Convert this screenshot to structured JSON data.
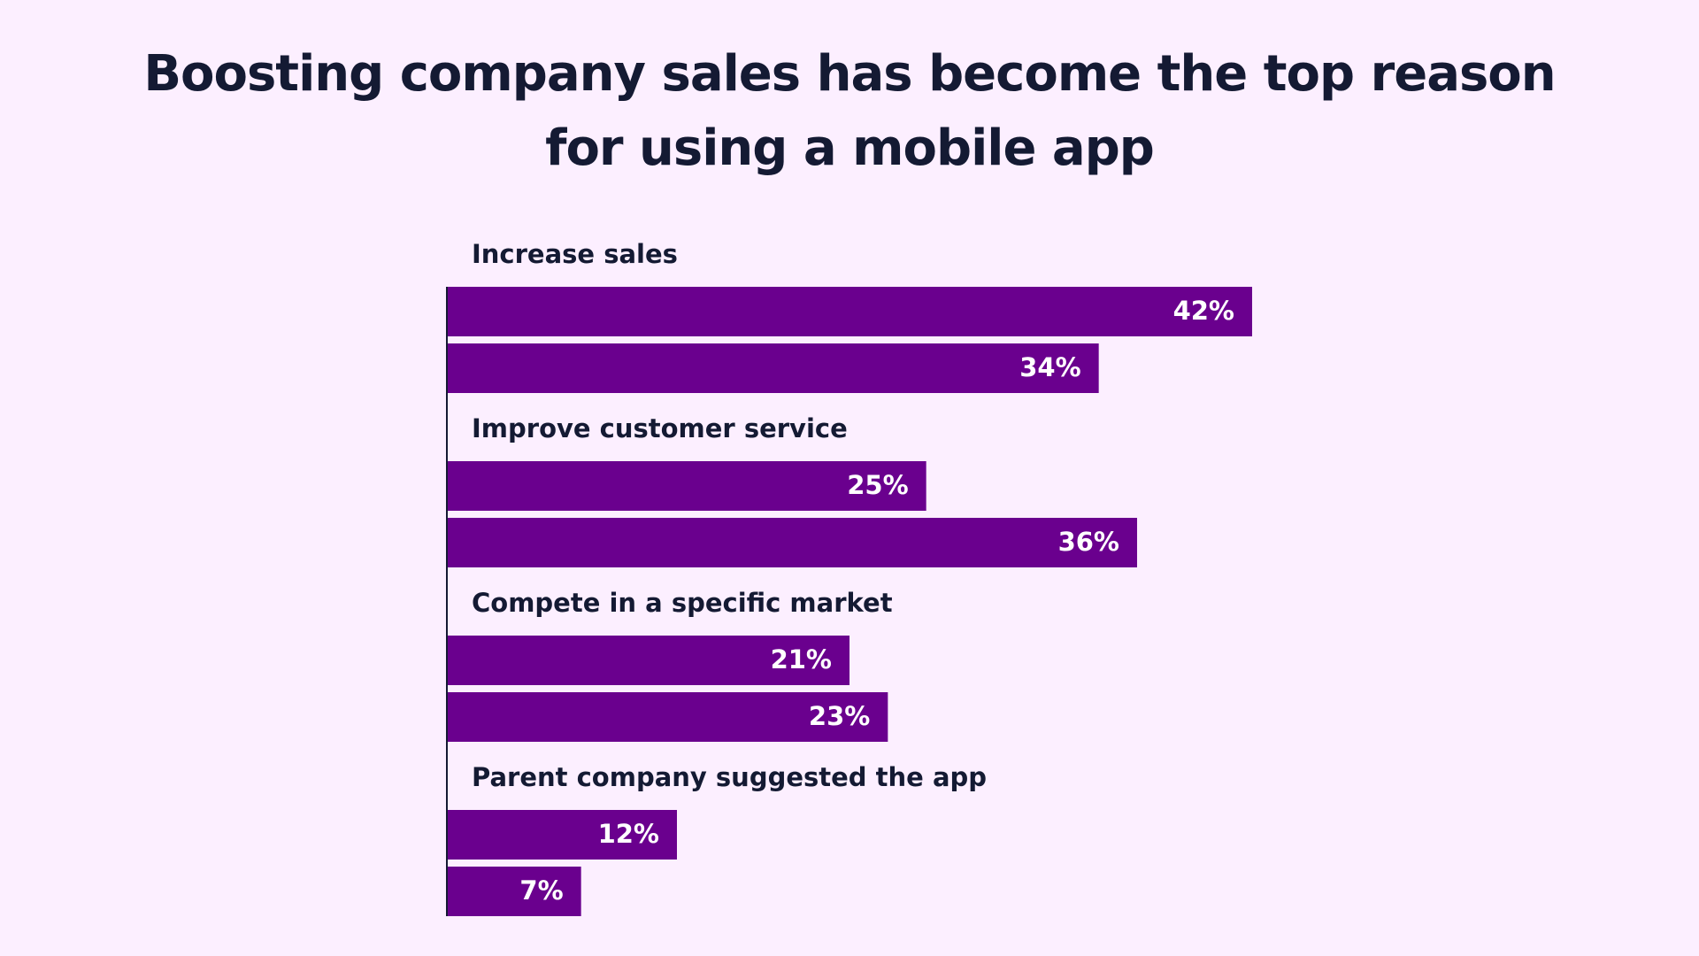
{
  "chart_data": {
    "type": "bar",
    "orientation": "horizontal",
    "title": "Boosting company sales has become the top reason for using a mobile app",
    "categories": [
      "Increase sales",
      "Improve customer service",
      "Compete in a specific market",
      "Parent company suggested the app"
    ],
    "series": [
      {
        "color": "#6a008e",
        "values": [
          42,
          25,
          21,
          12
        ],
        "value_labels": [
          "42%",
          "25%",
          "21%",
          "12%"
        ]
      },
      {
        "color": "#6a008e",
        "values": [
          34,
          36,
          23,
          7
        ],
        "value_labels": [
          "34%",
          "36%",
          "23%",
          "7%"
        ]
      }
    ]
  }
}
